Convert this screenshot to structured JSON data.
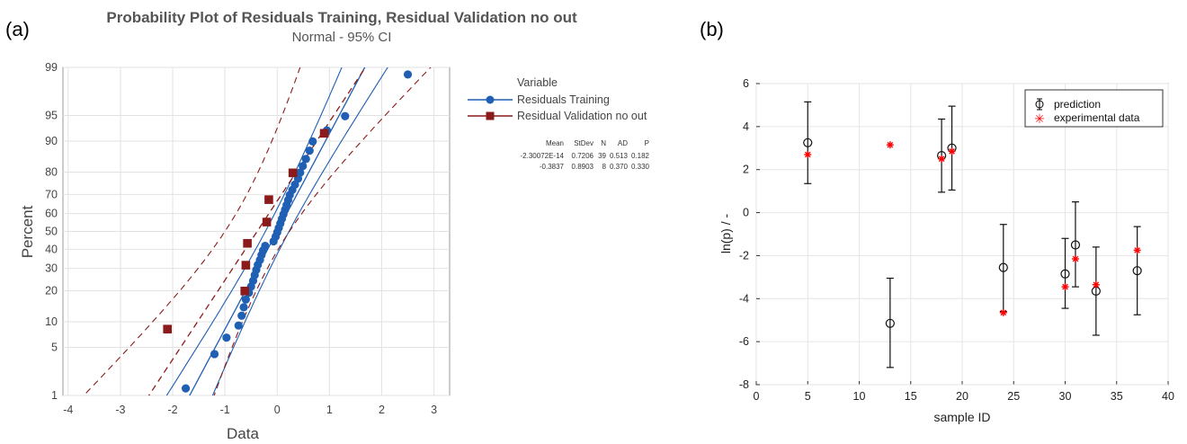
{
  "chart_data": [
    {
      "panel_label": "(a)",
      "type": "scatter",
      "title": "Probability Plot of Residuals Training, Residual Validation no out",
      "subtitle": "Normal - 95% CI",
      "xlabel": "Data",
      "ylabel": "Percent",
      "xlim": [
        -4.1,
        3.3
      ],
      "x_ticks": [
        -4,
        -3,
        -2,
        -1,
        0,
        1,
        2,
        3
      ],
      "y_scale": "normal-probability",
      "y_ticks": [
        1,
        5,
        10,
        20,
        30,
        40,
        50,
        60,
        70,
        80,
        90,
        95,
        99
      ],
      "grid": true,
      "legend": {
        "title": "Variable",
        "placement": "right"
      },
      "stats_table": {
        "headers": [
          "Mean",
          "StDev",
          "N",
          "AD",
          "P"
        ],
        "rows": [
          [
            "-2.30072E-14",
            "0.7206",
            "39",
            "0.513",
            "0.182"
          ],
          [
            "-0.3837",
            "0.8903",
            "8",
            "0.370",
            "0.330"
          ]
        ]
      },
      "series": [
        {
          "name": "Residuals Training",
          "color": "#1f5fb4",
          "marker": "circle",
          "mean": 0.0,
          "stdev": 0.7206,
          "points": [
            [
              -1.75,
              1.3
            ],
            [
              -1.2,
              4.1
            ],
            [
              -0.97,
              6.6
            ],
            [
              -0.74,
              9.1
            ],
            [
              -0.68,
              11.6
            ],
            [
              -0.64,
              14.1
            ],
            [
              -0.6,
              16.7
            ],
            [
              -0.54,
              19.2
            ],
            [
              -0.5,
              21.7
            ],
            [
              -0.46,
              24.2
            ],
            [
              -0.43,
              26.8
            ],
            [
              -0.4,
              29.3
            ],
            [
              -0.37,
              31.8
            ],
            [
              -0.33,
              34.3
            ],
            [
              -0.3,
              36.9
            ],
            [
              -0.27,
              39.4
            ],
            [
              -0.23,
              41.9
            ],
            [
              -0.07,
              44.4
            ],
            [
              -0.03,
              47.0
            ],
            [
              0.0,
              49.5
            ],
            [
              0.03,
              52.0
            ],
            [
              0.06,
              54.5
            ],
            [
              0.09,
              57.1
            ],
            [
              0.12,
              59.6
            ],
            [
              0.15,
              62.1
            ],
            [
              0.18,
              64.6
            ],
            [
              0.21,
              67.2
            ],
            [
              0.24,
              69.7
            ],
            [
              0.29,
              72.2
            ],
            [
              0.34,
              74.7
            ],
            [
              0.4,
              77.3
            ],
            [
              0.44,
              79.8
            ],
            [
              0.49,
              82.3
            ],
            [
              0.55,
              84.8
            ],
            [
              0.62,
              87.4
            ],
            [
              0.68,
              89.9
            ],
            [
              0.95,
              92.4
            ],
            [
              1.3,
              94.9
            ],
            [
              2.5,
              98.7
            ]
          ]
        },
        {
          "name": "Residual Validation no out",
          "color": "#8b1a1a",
          "marker": "square",
          "mean": -0.3837,
          "stdev": 0.8903,
          "points": [
            [
              -2.1,
              8.3
            ],
            [
              -0.62,
              19.9
            ],
            [
              -0.6,
              31.6
            ],
            [
              -0.57,
              43.3
            ],
            [
              -0.2,
              55.3
            ],
            [
              -0.16,
              67.4
            ],
            [
              0.3,
              79.7
            ],
            [
              0.9,
              91.8
            ]
          ]
        }
      ]
    },
    {
      "panel_label": "(b)",
      "type": "scatter",
      "xlabel": "sample ID",
      "ylabel": "ln(p) / -",
      "xlim": [
        0,
        40
      ],
      "ylim": [
        -8,
        6
      ],
      "x_ticks": [
        0,
        5,
        10,
        15,
        20,
        25,
        30,
        35,
        40
      ],
      "y_ticks": [
        -8,
        -6,
        -4,
        -2,
        0,
        2,
        4,
        6
      ],
      "grid": true,
      "legend": {
        "placement": "top-right"
      },
      "series": [
        {
          "name": "prediction",
          "color": "#000000",
          "marker": "open-circle-errorbar",
          "points": [
            {
              "x": 5,
              "y": 3.25,
              "low": 1.35,
              "high": 5.15
            },
            {
              "x": 13,
              "y": -5.15,
              "low": -7.2,
              "high": -3.05
            },
            {
              "x": 18,
              "y": 2.65,
              "low": 0.95,
              "high": 4.35
            },
            {
              "x": 19,
              "y": 3.0,
              "low": 1.05,
              "high": 4.95
            },
            {
              "x": 24,
              "y": -2.55,
              "low": -4.6,
              "high": -0.55
            },
            {
              "x": 30,
              "y": -2.85,
              "low": -4.45,
              "high": -1.2
            },
            {
              "x": 31,
              "y": -1.5,
              "low": -3.45,
              "high": 0.5
            },
            {
              "x": 33,
              "y": -3.65,
              "low": -5.7,
              "high": -1.6
            },
            {
              "x": 37,
              "y": -2.7,
              "low": -4.75,
              "high": -0.65
            }
          ]
        },
        {
          "name": "experimental data",
          "color": "#ff0000",
          "marker": "asterisk",
          "points": [
            [
              5,
              2.7
            ],
            [
              13,
              3.15
            ],
            [
              18,
              2.5
            ],
            [
              19,
              2.85
            ],
            [
              24,
              -4.65
            ],
            [
              30,
              -3.45
            ],
            [
              31,
              -2.15
            ],
            [
              33,
              -3.35
            ],
            [
              37,
              -1.75
            ]
          ]
        }
      ]
    }
  ]
}
